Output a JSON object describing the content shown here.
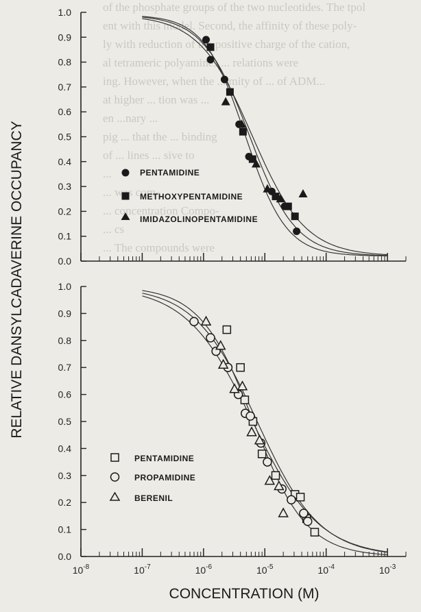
{
  "chart_data": [
    {
      "type": "scatter",
      "panel": "top",
      "xscale": "log",
      "xlim": [
        1e-08,
        0.002
      ],
      "ylim": [
        0.0,
        1.0
      ],
      "yticks": [
        0.0,
        0.1,
        0.2,
        0.3,
        0.4,
        0.5,
        0.6,
        0.7,
        0.8,
        0.9,
        1.0
      ],
      "legend_position": "middle-left",
      "series": [
        {
          "name": "PENTAMIDINE",
          "marker": "filled-circle",
          "points": [
            [
              1.1e-06,
              0.89
            ],
            [
              1.3e-06,
              0.81
            ],
            [
              2.2e-06,
              0.73
            ],
            [
              3.8e-06,
              0.55
            ],
            [
              5.5e-06,
              0.42
            ],
            [
              1.3e-05,
              0.28
            ],
            [
              2.1e-05,
              0.22
            ],
            [
              3.3e-05,
              0.12
            ]
          ]
        },
        {
          "name": "METHOXYPENTAMIDINE",
          "marker": "filled-square",
          "points": [
            [
              1.3e-06,
              0.86
            ],
            [
              2.7e-06,
              0.68
            ],
            [
              4.4e-06,
              0.52
            ],
            [
              6.3e-06,
              0.41
            ],
            [
              1.5e-05,
              0.26
            ],
            [
              2.4e-05,
              0.22
            ],
            [
              3.1e-05,
              0.18
            ]
          ]
        },
        {
          "name": "IMIDAZOLINOPENTAMIDINE",
          "marker": "filled-triangle",
          "points": [
            [
              2.3e-06,
              0.64
            ],
            [
              4.2e-06,
              0.55
            ],
            [
              7.2e-06,
              0.39
            ],
            [
              1.1e-05,
              0.29
            ],
            [
              1.8e-05,
              0.25
            ],
            [
              4.2e-05,
              0.27
            ]
          ]
        }
      ],
      "fits": [
        {
          "top": 0.99,
          "bottom": 0.02,
          "ic50": 6.2e-06,
          "hill": 1.0
        },
        {
          "top": 0.99,
          "bottom": 0.02,
          "ic50": 5.6e-06,
          "hill": 1.15
        },
        {
          "top": 0.99,
          "bottom": 0.02,
          "ic50": 4.8e-06,
          "hill": 1.3
        }
      ]
    },
    {
      "type": "scatter",
      "panel": "bottom",
      "xscale": "log",
      "xlim": [
        1e-08,
        0.002
      ],
      "xticks": [
        "10-8",
        "10-7",
        "10-6",
        "10-5",
        "10-4",
        "10-3"
      ],
      "ylim": [
        0.0,
        1.0
      ],
      "yticks": [
        0.0,
        0.1,
        0.2,
        0.3,
        0.4,
        0.5,
        0.6,
        0.7,
        0.8,
        0.9,
        1.0
      ],
      "xlabel": "CONCENTRATION (M)",
      "ylabel": "RELATIVE  DANSYLCADAVERINE  OCCUPANCY",
      "legend_position": "lower-left",
      "series": [
        {
          "name": "PENTAMIDINE",
          "marker": "open-square",
          "points": [
            [
              2.4e-06,
              0.84
            ],
            [
              4e-06,
              0.7
            ],
            [
              4.7e-06,
              0.58
            ],
            [
              6.4e-06,
              0.5
            ],
            [
              9e-06,
              0.38
            ],
            [
              1.5e-05,
              0.3
            ],
            [
              3.1e-05,
              0.23
            ],
            [
              3.8e-05,
              0.22
            ],
            [
              4.8e-05,
              0.14
            ],
            [
              6.5e-05,
              0.09
            ]
          ]
        },
        {
          "name": "PROPAMIDINE",
          "marker": "open-circle",
          "points": [
            [
              7e-07,
              0.87
            ],
            [
              1.3e-06,
              0.81
            ],
            [
              1.6e-06,
              0.76
            ],
            [
              2.5e-06,
              0.7
            ],
            [
              3.7e-06,
              0.6
            ],
            [
              4.8e-06,
              0.53
            ],
            [
              5.8e-06,
              0.52
            ],
            [
              8.6e-06,
              0.42
            ],
            [
              1.1e-05,
              0.35
            ],
            [
              1.9e-05,
              0.25
            ],
            [
              2.7e-05,
              0.21
            ],
            [
              4.3e-05,
              0.16
            ],
            [
              5e-05,
              0.13
            ]
          ]
        },
        {
          "name": "BERENIL",
          "marker": "open-triangle",
          "points": [
            [
              1.1e-06,
              0.87
            ],
            [
              1.9e-06,
              0.78
            ],
            [
              2.1e-06,
              0.71
            ],
            [
              3.2e-06,
              0.62
            ],
            [
              4.3e-06,
              0.63
            ],
            [
              6.1e-06,
              0.46
            ],
            [
              8.2e-06,
              0.43
            ],
            [
              1.2e-05,
              0.28
            ],
            [
              1.7e-05,
              0.26
            ],
            [
              2e-05,
              0.16
            ]
          ]
        }
      ],
      "fits": [
        {
          "top": 1.0,
          "bottom": 0.0,
          "ic50": 6.3e-06,
          "hill": 0.8
        },
        {
          "top": 1.0,
          "bottom": 0.0,
          "ic50": 7.5e-06,
          "hill": 0.85
        },
        {
          "top": 1.0,
          "bottom": 0.0,
          "ic50": 6.5e-06,
          "hill": 1.0
        }
      ]
    }
  ],
  "background_text": [
    "of the phosphate groups of the two nucleotides. The tpol",
    "ent with this model. Second, the affinity of these poly-",
    "ly with reduction of the positive charge of the cation,",
    "al tetrameric polyamines ... relations were",
    "ing. However, when the ... mity of ... of ADM...",
    "at higher ... tion was ... ",
    "en ...nary ... ",
    "pig ... that the ... binding",
    "of ... lines ... sive to",
    "... ",
    "... was com-",
    "... concentration Compo-",
    "... cs",
    "... The compounds were"
  ]
}
